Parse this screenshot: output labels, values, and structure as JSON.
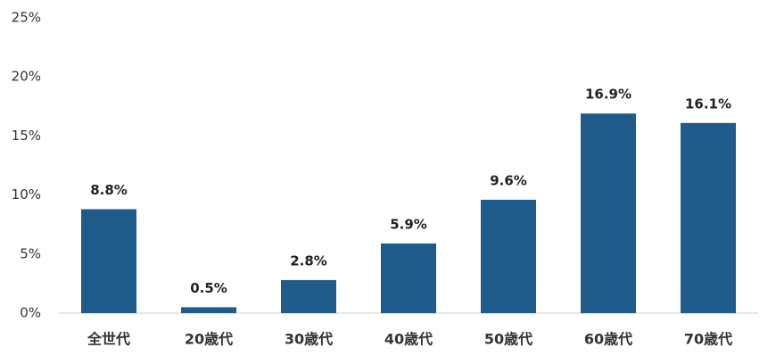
{
  "chart_data": {
    "type": "bar",
    "categories": [
      "全世代",
      "20歳代",
      "30歳代",
      "40歳代",
      "50歳代",
      "60歳代",
      "70歳代"
    ],
    "values": [
      8.8,
      0.5,
      2.8,
      5.9,
      9.6,
      16.9,
      16.1
    ],
    "value_labels": [
      "8.8%",
      "0.5%",
      "2.8%",
      "5.9%",
      "9.6%",
      "16.9%",
      "16.1%"
    ],
    "color": "#1f5c8c",
    "ylim": [
      0,
      25
    ],
    "yticks": [
      {
        "value": 0,
        "label": "0%"
      },
      {
        "value": 5,
        "label": "5%"
      },
      {
        "value": 10,
        "label": "10%"
      },
      {
        "value": 15,
        "label": "15%"
      },
      {
        "value": 20,
        "label": "20%"
      },
      {
        "value": 25,
        "label": "25%"
      }
    ],
    "grid": false
  }
}
